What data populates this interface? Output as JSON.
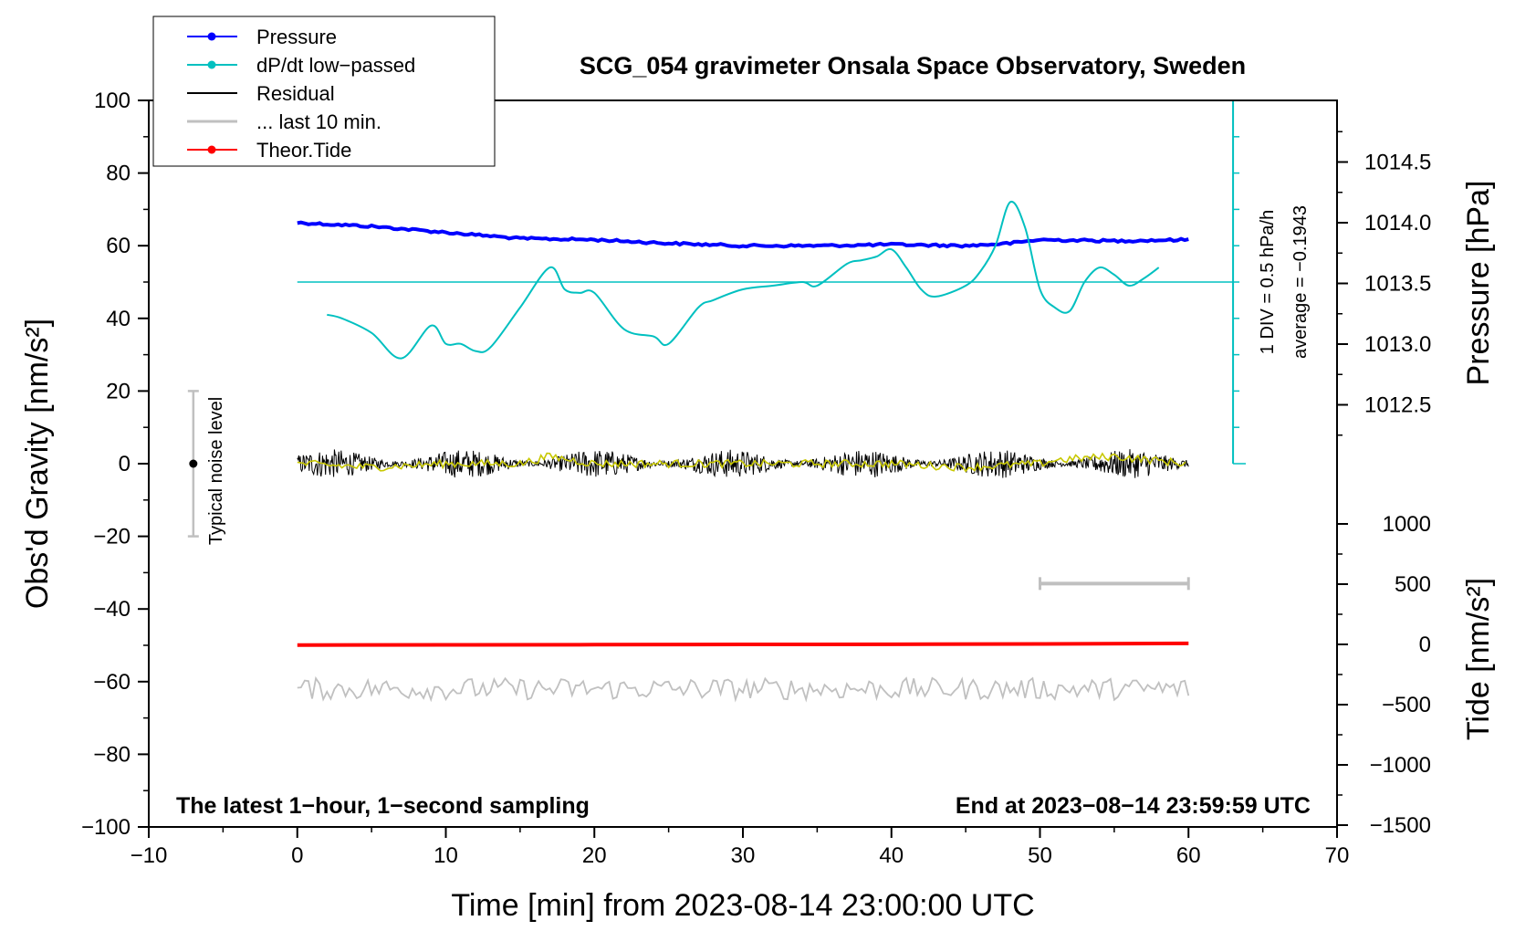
{
  "chart_data": {
    "type": "line",
    "title": "SCG_054 gravimeter Onsala Space Observatory, Sweden",
    "xlabel": "Time [min] from 2023-08-14 23:00:00 UTC",
    "ylabel_left": "Obs'd Gravity [nm/s²]",
    "ylabel_right_top": "Pressure [hPa]",
    "ylabel_right_bottom": "Tide [nm/s²]",
    "xlim": [
      -10,
      70
    ],
    "ylim": [
      -100,
      100
    ],
    "x_ticks": [
      -10,
      0,
      10,
      20,
      30,
      40,
      50,
      60,
      70
    ],
    "x_tick_labels": [
      "−10",
      "0",
      "10",
      "20",
      "30",
      "40",
      "50",
      "60",
      "70"
    ],
    "y_ticks": [
      -100,
      -80,
      -60,
      -40,
      -20,
      0,
      20,
      40,
      60,
      80,
      100
    ],
    "y_tick_labels": [
      "−100",
      "−80",
      "−60",
      "−40",
      "−20",
      "0",
      "20",
      "40",
      "60",
      "80",
      "100"
    ],
    "pressure_axis": {
      "ticks": [
        1012.5,
        1013.0,
        1013.5,
        1014.0,
        1014.5
      ],
      "tick_labels": [
        "1012.5",
        "1013.0",
        "1013.5",
        "1014.0",
        "1014.5"
      ]
    },
    "tide_axis": {
      "ticks": [
        1000,
        500,
        0,
        -500,
        -1000,
        -1500
      ],
      "tick_labels": [
        "1000",
        "500",
        "0",
        "−500",
        "−1000",
        "−1500"
      ]
    },
    "legend": [
      {
        "label": "Pressure",
        "color": "#0000ff",
        "marker": true
      },
      {
        "label": "dP/dt low−passed",
        "color": "#00c0c0",
        "marker": true
      },
      {
        "label": "Residual",
        "color": "#000000",
        "marker": false
      },
      {
        "label": "... last 10 min.",
        "color": "#c0c0c0",
        "marker": false
      },
      {
        "label": "Theor.Tide",
        "color": "#ff0000",
        "marker": true
      }
    ],
    "series": [
      {
        "name": "Pressure",
        "color": "#0000ff",
        "unit": "hPa",
        "x": [
          0,
          5,
          10,
          15,
          20,
          25,
          30,
          35,
          40,
          45,
          48,
          50,
          55,
          60
        ],
        "values": [
          1014.0,
          1013.97,
          1013.92,
          1013.87,
          1013.86,
          1013.83,
          1013.81,
          1013.81,
          1013.82,
          1013.81,
          1013.83,
          1013.86,
          1013.85,
          1013.86
        ]
      },
      {
        "name": "dP/dt low−passed",
        "color": "#00c0c0",
        "x": [
          2,
          3,
          5,
          7,
          9,
          10,
          11,
          12,
          13,
          15,
          17,
          18,
          19,
          20,
          22,
          24,
          25,
          27,
          28,
          30,
          32,
          34,
          35,
          37,
          38,
          39,
          40,
          41,
          42,
          43,
          45,
          46,
          47,
          48,
          49,
          50,
          51,
          52,
          53,
          54,
          55,
          56,
          57,
          58
        ],
        "values": [
          41,
          40,
          36,
          29,
          38,
          33,
          33,
          31,
          32,
          43,
          54,
          48,
          47,
          47,
          37,
          35,
          33,
          43,
          45,
          48,
          49,
          50,
          49,
          55,
          56,
          57,
          59,
          54,
          48,
          46,
          49,
          53,
          60,
          72,
          65,
          48,
          43,
          42,
          50,
          54,
          52,
          49,
          51,
          54
        ]
      },
      {
        "name": "dP/dt reference",
        "color": "#00c0c0",
        "x": [
          0,
          63
        ],
        "values": [
          50,
          50
        ]
      },
      {
        "name": "Residual",
        "color": "#000000",
        "x_range": [
          0,
          60
        ],
        "mean": 0,
        "noise_amplitude": 4
      },
      {
        "name": "Residual smoothed",
        "color": "#c8c800",
        "x": [
          0,
          5,
          10,
          15,
          17,
          20,
          25,
          30,
          35,
          40,
          45,
          50,
          51,
          55,
          60
        ],
        "values": [
          0,
          -1,
          0,
          0,
          2,
          0,
          0,
          0,
          0,
          0,
          -1,
          0,
          1,
          2,
          0
        ]
      },
      {
        "name": "... last 10 min.",
        "color": "#c0c0c0",
        "x_range": [
          0,
          60
        ],
        "mean": -62,
        "noise_amplitude": 3
      },
      {
        "name": "Theor.Tide",
        "color": "#ff0000",
        "unit": "nm/s²",
        "x": [
          0,
          10,
          20,
          30,
          40,
          50,
          60
        ],
        "values": [
          -5,
          -4,
          -2,
          0,
          1,
          4,
          8
        ]
      }
    ],
    "noise_bar": {
      "x": -7,
      "center": 0,
      "low": -20,
      "high": 20,
      "label": "Typical noise level"
    },
    "last10_bar": {
      "x_start": 50,
      "x_end": 60,
      "y": -33
    },
    "dpdt_scale": {
      "x": 63,
      "bottom": 0,
      "top": 100,
      "label_div": "1 DIV = 0.5 hPa/h",
      "label_avg": "average = −0.1943"
    },
    "annotations": {
      "bottom_left": "The latest 1−hour, 1−second sampling",
      "bottom_right": "End at 2023−08−14 23:59:59 UTC"
    },
    "grid": false,
    "legend_position": "top-left"
  }
}
